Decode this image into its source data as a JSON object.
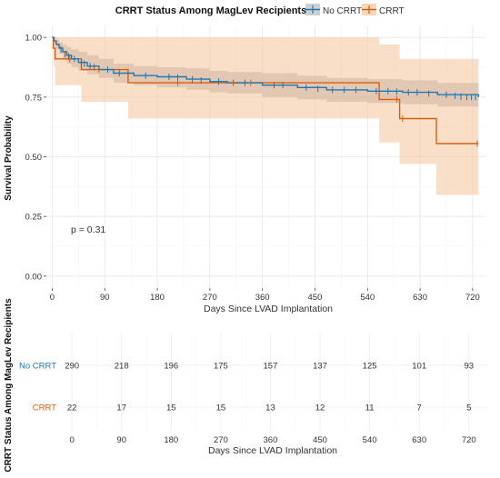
{
  "chart_data": {
    "type": "line",
    "legend": {
      "title": "CRRT Status Among MagLev Recipients",
      "placement": "top",
      "entries": [
        "No CRRT",
        "CRRT"
      ]
    },
    "xlabel": "Days Since LVAD Implantation",
    "ylabel": "Survival Probability",
    "xlim": [
      -10,
      742
    ],
    "ylim": [
      -0.05,
      1.05
    ],
    "x_ticks": [
      0,
      90,
      180,
      270,
      360,
      450,
      540,
      630,
      720
    ],
    "y_ticks": [
      "0.00",
      "0.25",
      "0.50",
      "0.75",
      "1.00"
    ],
    "annotation": "p = 0.31",
    "series": [
      {
        "name": "No CRRT",
        "color": "#1f78b4",
        "band_color": "#9ea3a6",
        "steps": [
          [
            0,
            1.0
          ],
          [
            3,
            0.985
          ],
          [
            7,
            0.97
          ],
          [
            12,
            0.955
          ],
          [
            18,
            0.94
          ],
          [
            25,
            0.925
          ],
          [
            33,
            0.91
          ],
          [
            45,
            0.895
          ],
          [
            60,
            0.88
          ],
          [
            80,
            0.865
          ],
          [
            105,
            0.85
          ],
          [
            140,
            0.84
          ],
          [
            180,
            0.835
          ],
          [
            230,
            0.825
          ],
          [
            270,
            0.815
          ],
          [
            300,
            0.81
          ],
          [
            360,
            0.8
          ],
          [
            420,
            0.79
          ],
          [
            470,
            0.78
          ],
          [
            540,
            0.775
          ],
          [
            600,
            0.77
          ],
          [
            660,
            0.76
          ],
          [
            730,
            0.75
          ]
        ],
        "lower": [
          [
            0,
            1.0
          ],
          [
            3,
            0.97
          ],
          [
            7,
            0.95
          ],
          [
            12,
            0.93
          ],
          [
            18,
            0.91
          ],
          [
            25,
            0.89
          ],
          [
            33,
            0.875
          ],
          [
            45,
            0.86
          ],
          [
            60,
            0.845
          ],
          [
            80,
            0.83
          ],
          [
            105,
            0.81
          ],
          [
            140,
            0.8
          ],
          [
            180,
            0.79
          ],
          [
            230,
            0.78
          ],
          [
            270,
            0.77
          ],
          [
            300,
            0.765
          ],
          [
            360,
            0.75
          ],
          [
            420,
            0.74
          ],
          [
            470,
            0.73
          ],
          [
            540,
            0.725
          ],
          [
            600,
            0.72
          ],
          [
            660,
            0.71
          ],
          [
            730,
            0.7
          ]
        ],
        "upper": [
          [
            0,
            1.0
          ],
          [
            3,
            1.0
          ],
          [
            7,
            0.99
          ],
          [
            12,
            0.98
          ],
          [
            18,
            0.97
          ],
          [
            25,
            0.96
          ],
          [
            33,
            0.95
          ],
          [
            45,
            0.94
          ],
          [
            60,
            0.925
          ],
          [
            80,
            0.91
          ],
          [
            105,
            0.89
          ],
          [
            140,
            0.88
          ],
          [
            180,
            0.875
          ],
          [
            230,
            0.87
          ],
          [
            270,
            0.86
          ],
          [
            300,
            0.855
          ],
          [
            360,
            0.85
          ],
          [
            420,
            0.84
          ],
          [
            470,
            0.83
          ],
          [
            540,
            0.825
          ],
          [
            600,
            0.82
          ],
          [
            660,
            0.81
          ],
          [
            730,
            0.8
          ]
        ],
        "censored": [
          [
            15,
            0.95
          ],
          [
            22,
            0.93
          ],
          [
            28,
            0.92
          ],
          [
            38,
            0.91
          ],
          [
            50,
            0.895
          ],
          [
            55,
            0.89
          ],
          [
            65,
            0.88
          ],
          [
            72,
            0.875
          ],
          [
            95,
            0.865
          ],
          [
            115,
            0.85
          ],
          [
            160,
            0.84
          ],
          [
            200,
            0.835
          ],
          [
            215,
            0.832
          ],
          [
            240,
            0.825
          ],
          [
            255,
            0.82
          ],
          [
            285,
            0.815
          ],
          [
            310,
            0.81
          ],
          [
            330,
            0.81
          ],
          [
            380,
            0.8
          ],
          [
            395,
            0.8
          ],
          [
            435,
            0.79
          ],
          [
            455,
            0.785
          ],
          [
            480,
            0.78
          ],
          [
            500,
            0.78
          ],
          [
            520,
            0.78
          ],
          [
            555,
            0.775
          ],
          [
            575,
            0.775
          ],
          [
            590,
            0.772
          ],
          [
            610,
            0.77
          ],
          [
            625,
            0.77
          ],
          [
            645,
            0.765
          ],
          [
            675,
            0.76
          ],
          [
            690,
            0.755
          ],
          [
            700,
            0.752
          ],
          [
            710,
            0.75
          ],
          [
            718,
            0.75
          ],
          [
            725,
            0.75
          ]
        ]
      },
      {
        "name": "CRRT",
        "color": "#d95f0e",
        "band_color": "#f6c49b",
        "steps": [
          [
            0,
            1.0
          ],
          [
            2,
            0.955
          ],
          [
            5,
            0.91
          ],
          [
            50,
            0.865
          ],
          [
            130,
            0.81
          ],
          [
            395,
            0.81
          ],
          [
            560,
            0.74
          ],
          [
            595,
            0.66
          ],
          [
            658,
            0.555
          ],
          [
            730,
            0.555
          ]
        ],
        "lower": [
          [
            0,
            1.0
          ],
          [
            2,
            0.88
          ],
          [
            5,
            0.8
          ],
          [
            50,
            0.73
          ],
          [
            130,
            0.66
          ],
          [
            395,
            0.66
          ],
          [
            560,
            0.56
          ],
          [
            595,
            0.47
          ],
          [
            658,
            0.34
          ],
          [
            730,
            0.34
          ]
        ],
        "upper": [
          [
            0,
            1.0
          ],
          [
            2,
            1.0
          ],
          [
            5,
            1.0
          ],
          [
            50,
            1.0
          ],
          [
            130,
            1.0
          ],
          [
            395,
            1.0
          ],
          [
            560,
            0.97
          ],
          [
            595,
            0.91
          ],
          [
            658,
            0.91
          ],
          [
            730,
            0.91
          ]
        ],
        "censored": [
          [
            30,
            0.91
          ],
          [
            80,
            0.865
          ],
          [
            215,
            0.81
          ],
          [
            310,
            0.81
          ],
          [
            340,
            0.81
          ],
          [
            590,
            0.74
          ],
          [
            600,
            0.66
          ],
          [
            728,
            0.555
          ]
        ]
      }
    ],
    "risk_table": {
      "title": "CRRT Status Among MagLev Recipients",
      "xlabel": "Days Since LVAD Implantation",
      "times": [
        0,
        90,
        180,
        270,
        360,
        450,
        540,
        630,
        720
      ],
      "rows": [
        {
          "label": "No CRRT",
          "color": "#1f78b4",
          "counts": [
            290,
            218,
            196,
            175,
            157,
            137,
            125,
            101,
            93
          ]
        },
        {
          "label": "CRRT",
          "color": "#d95f0e",
          "counts": [
            22,
            17,
            15,
            15,
            13,
            12,
            11,
            7,
            5
          ]
        }
      ]
    }
  }
}
